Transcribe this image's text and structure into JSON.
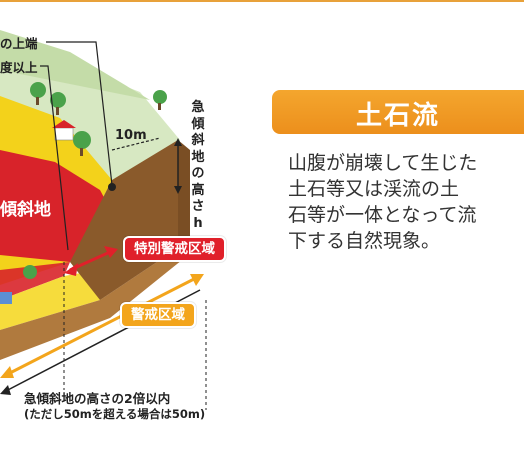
{
  "diagram": {
    "callouts": [
      "の上端",
      "度以上"
    ],
    "height_label": "急傾斜地の高さh",
    "distance_label": "10m",
    "slope_label": "傾斜地",
    "special_zone_badge": "特別警戒区域",
    "warning_zone_badge": "警戒区域",
    "caption_line1": "急傾斜地の高さの2倍以内",
    "caption_line2": "(ただし50mを超える場合は50m)"
  },
  "panel": {
    "title": "土石流",
    "description_lines": [
      "山腹が崩壊して生じた",
      "土石等又は渓流の土",
      "石等が一体となって流",
      "下する自然現象。"
    ]
  },
  "colors": {
    "accent_orange": "#ec8f1c",
    "special_zone_red": "#e0202a",
    "warning_zone_yellow": "#f3a51c",
    "terrain_yellow": "#f3d21b",
    "terrain_red": "#d8232a",
    "soil_brown": "#8a5a2b",
    "grass_green": "#cfe3b4"
  }
}
